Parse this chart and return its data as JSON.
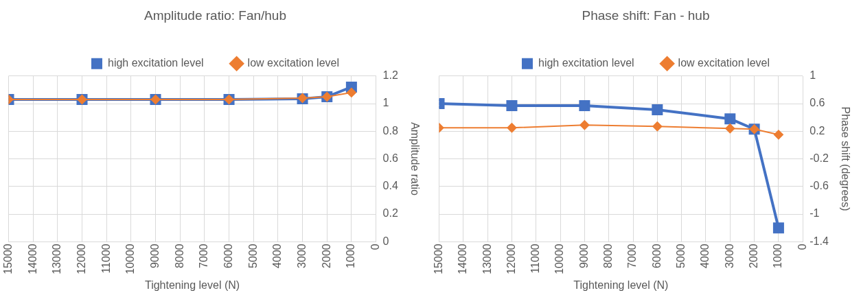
{
  "chart_data": [
    {
      "type": "line",
      "title": "Amplitude ratio: Fan/hub",
      "xlabel": "Tightening level (N)",
      "ylabel": "Amplitude ratio",
      "x": [
        15000,
        12000,
        9000,
        6000,
        3000,
        2000,
        1000
      ],
      "xlim": [
        15000,
        0
      ],
      "xticks": [
        15000,
        14000,
        13000,
        12000,
        11000,
        10000,
        9000,
        8000,
        7000,
        6000,
        5000,
        4000,
        3000,
        2000,
        1000,
        0
      ],
      "ylim": [
        0,
        1.2
      ],
      "yticks": [
        0,
        0.2,
        0.4,
        0.6,
        0.8,
        1,
        1.2
      ],
      "grid": true,
      "legend": "top",
      "line_style": "solid",
      "series": [
        {
          "name": "high excitation level",
          "color": "#4472c4",
          "marker": "square",
          "values": [
            1.03,
            1.03,
            1.03,
            1.03,
            1.035,
            1.05,
            1.12
          ]
        },
        {
          "name": "low excitation level",
          "color": "#ed7d31",
          "marker": "diamond",
          "values": [
            1.03,
            1.03,
            1.03,
            1.03,
            1.04,
            1.05,
            1.08
          ]
        }
      ]
    },
    {
      "type": "line",
      "title": "Phase shift: Fan - hub",
      "xlabel": "Tightening level (N)",
      "ylabel": "Phase shift (degrees)",
      "x": [
        15000,
        12000,
        9000,
        6000,
        3000,
        2000,
        1000
      ],
      "xlim": [
        15000,
        0
      ],
      "xticks": [
        15000,
        14000,
        13000,
        12000,
        11000,
        10000,
        9000,
        8000,
        7000,
        6000,
        5000,
        4000,
        3000,
        2000,
        1000,
        0
      ],
      "ylim": [
        -1.4,
        1
      ],
      "yticks": [
        -1.4,
        -1,
        -0.6,
        -0.2,
        0.2,
        0.6,
        1
      ],
      "grid": true,
      "legend": "top",
      "line_style": "solid",
      "series": [
        {
          "name": "high excitation level",
          "color": "#4472c4",
          "marker": "square",
          "values": [
            0.6,
            0.57,
            0.57,
            0.51,
            0.38,
            0.23,
            -1.2
          ]
        },
        {
          "name": "low excitation level",
          "color": "#ed7d31",
          "marker": "diamond",
          "values": [
            0.25,
            0.25,
            0.29,
            0.27,
            0.24,
            0.23,
            0.15
          ]
        }
      ]
    }
  ]
}
